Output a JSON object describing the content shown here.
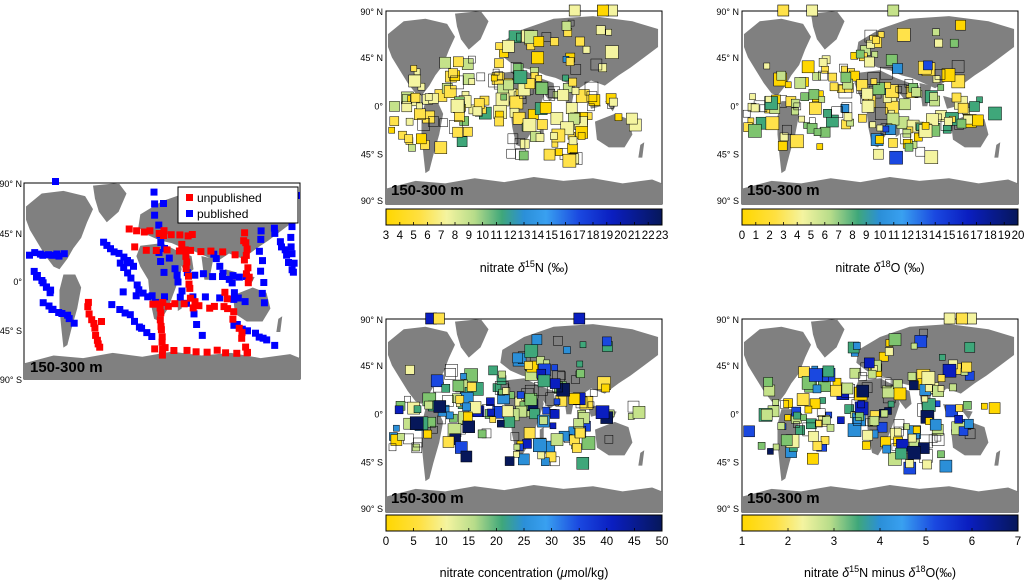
{
  "figure": {
    "depth_label": "150-300 m",
    "lat_labels": [
      "90° N",
      "45° N",
      "0°",
      "45° S",
      "90° S"
    ],
    "land_color": "#808080",
    "ocean_color": "#ffffff"
  },
  "coverage_map": {
    "legend": [
      {
        "label": "unpublished",
        "color": "#ff0000"
      },
      {
        "label": "published",
        "color": "#0000ff"
      }
    ]
  },
  "maps": [
    {
      "id": "d15n",
      "caption_parts": [
        "nitrate ",
        "δ",
        "15",
        "N (‰)"
      ],
      "colorbar": {
        "min": 3,
        "max": 23,
        "ticks": [
          "3",
          "4",
          "5",
          "6",
          "7",
          "8",
          "9",
          "10",
          "11",
          "12",
          "13",
          "14",
          "15",
          "16",
          "17",
          "18",
          "19",
          "20",
          "21",
          "22",
          "23"
        ],
        "colors": [
          "#ffd700",
          "#fff68f",
          "#c8e68c",
          "#4caf7a",
          "#2fa0e6",
          "#0a2fd0",
          "#050a6a"
        ]
      }
    },
    {
      "id": "d18o",
      "caption_parts": [
        "nitrate ",
        "δ",
        "18",
        "O (‰)"
      ],
      "colorbar": {
        "min": 0,
        "max": 20,
        "ticks": [
          "0",
          "1",
          "2",
          "3",
          "4",
          "5",
          "6",
          "7",
          "8",
          "9",
          "10",
          "11",
          "12",
          "13",
          "14",
          "15",
          "16",
          "17",
          "18",
          "19",
          "20"
        ],
        "colors": [
          "#ffd700",
          "#fff68f",
          "#c8e68c",
          "#4caf7a",
          "#2fa0e6",
          "#0a2fd0",
          "#050a6a"
        ]
      }
    },
    {
      "id": "no3",
      "caption_parts": [
        "nitrate concentration (",
        "μ",
        "mol/kg)"
      ],
      "colorbar": {
        "min": 0,
        "max": 50,
        "ticks": [
          "0",
          "5",
          "10",
          "15",
          "20",
          "25",
          "30",
          "35",
          "40",
          "45",
          "50"
        ],
        "colors": [
          "#ffd700",
          "#fff68f",
          "#c8e68c",
          "#4caf7a",
          "#2fa0e6",
          "#0a2fd0",
          "#050a6a"
        ]
      }
    },
    {
      "id": "diff",
      "caption_parts": [
        "nitrate ",
        "δ",
        "15",
        "N minus ",
        "δ",
        "18",
        "O(‰)"
      ],
      "colorbar": {
        "min": 1,
        "max": 7,
        "ticks": [
          "1",
          "2",
          "3",
          "4",
          "5",
          "6",
          "7"
        ],
        "colors": [
          "#ffd700",
          "#fff68f",
          "#c8e68c",
          "#4caf7a",
          "#2fa0e6",
          "#0a2fd0",
          "#050a6a"
        ]
      }
    }
  ]
}
